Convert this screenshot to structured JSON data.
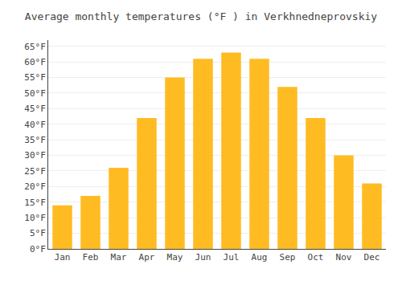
{
  "chart_data": {
    "type": "bar",
    "title": "Average monthly temperatures (°F ) in Verkhnedneprovskiy",
    "categories": [
      "Jan",
      "Feb",
      "Mar",
      "Apr",
      "May",
      "Jun",
      "Jul",
      "Aug",
      "Sep",
      "Oct",
      "Nov",
      "Dec"
    ],
    "values": [
      14,
      17,
      26,
      42,
      55,
      61,
      63,
      61,
      52,
      42,
      30,
      21
    ],
    "color": "#FFBB22",
    "ylim": [
      0,
      67
    ],
    "yticks": [
      {
        "value": 0,
        "label": "0°F"
      },
      {
        "value": 5,
        "label": "5°F"
      },
      {
        "value": 10,
        "label": "10°F"
      },
      {
        "value": 15,
        "label": "15°F"
      },
      {
        "value": 20,
        "label": "20°F"
      },
      {
        "value": 25,
        "label": "25°F"
      },
      {
        "value": 30,
        "label": "30°F"
      },
      {
        "value": 35,
        "label": "35°F"
      },
      {
        "value": 40,
        "label": "40°F"
      },
      {
        "value": 45,
        "label": "45°F"
      },
      {
        "value": 50,
        "label": "50°F"
      },
      {
        "value": 55,
        "label": "55°F"
      },
      {
        "value": 60,
        "label": "60°F"
      },
      {
        "value": 65,
        "label": "65°F"
      }
    ],
    "grid": true
  }
}
